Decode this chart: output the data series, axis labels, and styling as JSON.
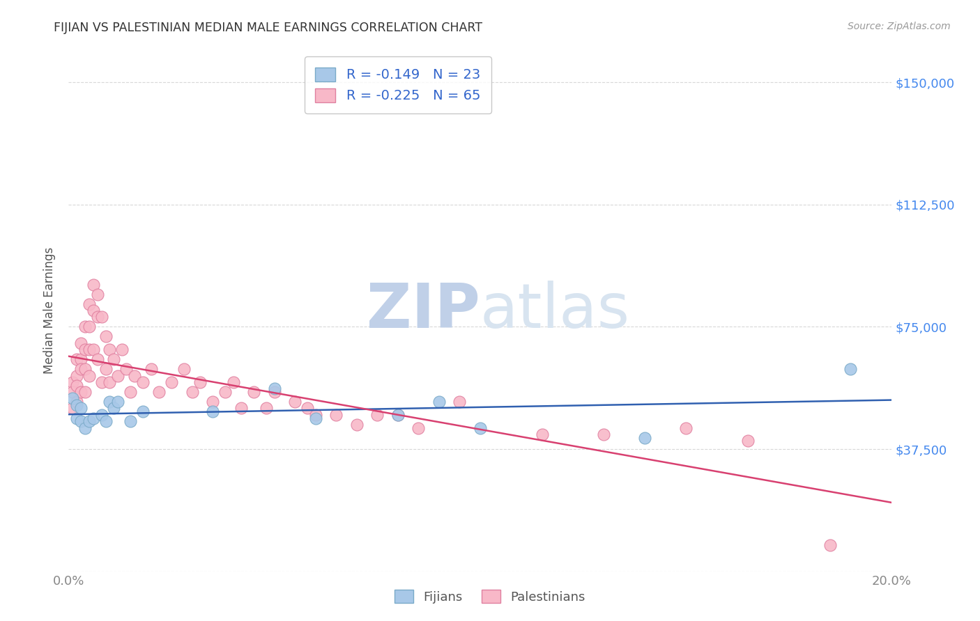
{
  "title": "FIJIAN VS PALESTINIAN MEDIAN MALE EARNINGS CORRELATION CHART",
  "source": "Source: ZipAtlas.com",
  "ylabel": "Median Male Earnings",
  "xlim": [
    0.0,
    0.2
  ],
  "ylim": [
    0,
    160000
  ],
  "yticks": [
    0,
    37500,
    75000,
    112500,
    150000
  ],
  "ytick_labels": [
    "",
    "$37,500",
    "$75,000",
    "$112,500",
    "$150,000"
  ],
  "xticks": [
    0.0,
    0.05,
    0.1,
    0.15,
    0.2
  ],
  "xtick_labels": [
    "0.0%",
    "",
    "",
    "",
    "20.0%"
  ],
  "background_color": "#ffffff",
  "grid_color": "#d8d8d8",
  "fijian_color": "#a8c8e8",
  "fijian_edge": "#7aaac8",
  "palestinian_color": "#f8b8c8",
  "palestinian_edge": "#e080a0",
  "fijian_R": -0.149,
  "fijian_N": 23,
  "palestinian_R": -0.225,
  "palestinian_N": 65,
  "fijian_x": [
    0.001,
    0.002,
    0.002,
    0.003,
    0.003,
    0.004,
    0.005,
    0.006,
    0.008,
    0.009,
    0.01,
    0.011,
    0.012,
    0.015,
    0.018,
    0.035,
    0.05,
    0.06,
    0.08,
    0.09,
    0.1,
    0.14,
    0.19
  ],
  "fijian_y": [
    53000,
    51000,
    47000,
    50000,
    46000,
    44000,
    46000,
    47000,
    48000,
    46000,
    52000,
    50000,
    52000,
    46000,
    49000,
    49000,
    56000,
    47000,
    48000,
    52000,
    44000,
    41000,
    62000
  ],
  "palestinian_x": [
    0.001,
    0.001,
    0.001,
    0.002,
    0.002,
    0.002,
    0.002,
    0.003,
    0.003,
    0.003,
    0.003,
    0.004,
    0.004,
    0.004,
    0.004,
    0.005,
    0.005,
    0.005,
    0.005,
    0.006,
    0.006,
    0.006,
    0.007,
    0.007,
    0.007,
    0.008,
    0.008,
    0.009,
    0.009,
    0.01,
    0.01,
    0.011,
    0.012,
    0.013,
    0.014,
    0.015,
    0.016,
    0.018,
    0.02,
    0.022,
    0.025,
    0.028,
    0.03,
    0.032,
    0.035,
    0.038,
    0.04,
    0.042,
    0.045,
    0.048,
    0.05,
    0.055,
    0.058,
    0.06,
    0.065,
    0.07,
    0.075,
    0.08,
    0.085,
    0.095,
    0.115,
    0.13,
    0.15,
    0.165,
    0.185
  ],
  "palestinian_y": [
    58000,
    55000,
    50000,
    65000,
    60000,
    57000,
    52000,
    70000,
    65000,
    62000,
    55000,
    75000,
    68000,
    62000,
    55000,
    82000,
    75000,
    68000,
    60000,
    88000,
    80000,
    68000,
    85000,
    78000,
    65000,
    78000,
    58000,
    72000,
    62000,
    68000,
    58000,
    65000,
    60000,
    68000,
    62000,
    55000,
    60000,
    58000,
    62000,
    55000,
    58000,
    62000,
    55000,
    58000,
    52000,
    55000,
    58000,
    50000,
    55000,
    50000,
    55000,
    52000,
    50000,
    48000,
    48000,
    45000,
    48000,
    48000,
    44000,
    52000,
    42000,
    42000,
    44000,
    40000,
    8000
  ],
  "fijian_line_color": "#3060b0",
  "palestinian_line_color": "#d84070",
  "line_width": 1.8,
  "watermark_zip_color": "#c0d0e8",
  "watermark_atlas_color": "#d8e4f0",
  "watermark_fontsize": 64
}
